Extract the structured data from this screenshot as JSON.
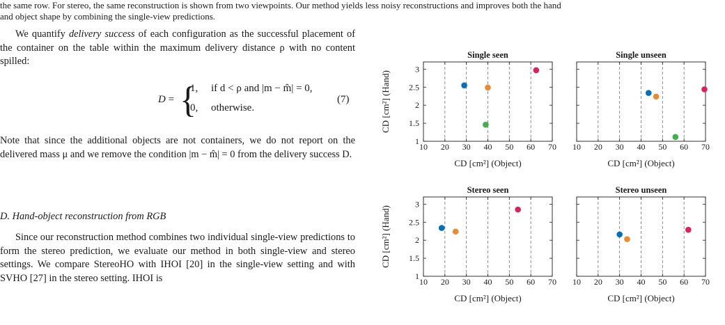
{
  "caption": {
    "line1": "the same row. For stereo, the same reconstruction is shown from two viewpoints. Our method yields less noisy reconstructions and improves both the hand",
    "line2": "and object shape by combining the single-view predictions."
  },
  "paragraph1": {
    "pre": "We quantify ",
    "em": "delivery success",
    "post": " of each configuration as the successful placement of the container on the table within the maximum delivery distance ρ with no content spilled:"
  },
  "equation": {
    "lhs": "D",
    "case1_value": "1,",
    "case1_cond": "if d < ρ and |m − m̂| = 0,",
    "case2_value": "0,",
    "case2_cond": "otherwise.",
    "number": "(7)"
  },
  "paragraph2": {
    "text": "Note that since the additional objects are not containers, we do not report on the delivered mass μ and we remove the condition |m − m̂| = 0 from the delivery success D."
  },
  "section": {
    "heading": "D. Hand-object reconstruction from RGB"
  },
  "paragraph3": {
    "text": "Since our reconstruction method combines two individual single-view predictions to form the stereo prediction, we evaluate our method in both single-view and stereo settings. We compare StereoHO with IHOI [20] in the single-view setting and with SVHO [27] in the stereo setting. IHOI is"
  },
  "chart_data": [
    {
      "type": "scatter",
      "title": "Single seen",
      "xlabel": "CD [cm²] (Object)",
      "ylabel": "CD [cm²] (Hand)",
      "xlim": [
        10,
        70
      ],
      "ylim": [
        1,
        3.2
      ],
      "xticks": [
        10,
        20,
        30,
        40,
        50,
        60,
        70
      ],
      "yticks": [
        1,
        1.5,
        2,
        2.5,
        3
      ],
      "grid": "vertical-dashed",
      "points": [
        {
          "x": 29,
          "y": 2.55,
          "color": "#0072BD"
        },
        {
          "x": 40,
          "y": 2.49,
          "color": "#EC8A2F"
        },
        {
          "x": 39,
          "y": 1.46,
          "color": "#3DB24A"
        },
        {
          "x": 62.5,
          "y": 2.97,
          "color": "#E0205A"
        }
      ]
    },
    {
      "type": "scatter",
      "title": "Single unseen",
      "xlabel": "CD [cm²] (Object)",
      "ylabel": "",
      "xlim": [
        10,
        70
      ],
      "ylim": [
        1,
        3.2
      ],
      "xticks": [
        10,
        20,
        30,
        40,
        50,
        60,
        70
      ],
      "yticks": [
        1,
        1.5,
        2,
        2.5,
        3
      ],
      "grid": "vertical-dashed",
      "points": [
        {
          "x": 43.5,
          "y": 2.34,
          "color": "#0072BD"
        },
        {
          "x": 47,
          "y": 2.24,
          "color": "#EC8A2F"
        },
        {
          "x": 56,
          "y": 1.12,
          "color": "#3DB24A"
        },
        {
          "x": 69.5,
          "y": 2.44,
          "color": "#E0205A"
        }
      ]
    },
    {
      "type": "scatter",
      "title": "Stereo seen",
      "xlabel": "CD [cm²] (Object)",
      "ylabel": "CD [cm²] (Hand)",
      "xlim": [
        10,
        70
      ],
      "ylim": [
        1,
        3.2
      ],
      "xticks": [
        10,
        20,
        30,
        40,
        50,
        60,
        70
      ],
      "yticks": [
        1,
        1.5,
        2,
        2.5,
        3
      ],
      "grid": "vertical-dashed",
      "points": [
        {
          "x": 18.5,
          "y": 2.34,
          "color": "#0072BD"
        },
        {
          "x": 25,
          "y": 2.24,
          "color": "#EC8A2F"
        },
        {
          "x": 54,
          "y": 2.85,
          "color": "#E0205A"
        }
      ]
    },
    {
      "type": "scatter",
      "title": "Stereo unseen",
      "xlabel": "CD [cm²] (Object)",
      "ylabel": "",
      "xlim": [
        10,
        70
      ],
      "ylim": [
        1,
        3.2
      ],
      "xticks": [
        10,
        20,
        30,
        40,
        50,
        60,
        70
      ],
      "yticks": [
        1,
        1.5,
        2,
        2.5,
        3
      ],
      "grid": "vertical-dashed",
      "points": [
        {
          "x": 30,
          "y": 2.16,
          "color": "#0072BD"
        },
        {
          "x": 33.5,
          "y": 2.03,
          "color": "#EC8A2F"
        },
        {
          "x": 62,
          "y": 2.29,
          "color": "#E0205A"
        }
      ]
    }
  ]
}
